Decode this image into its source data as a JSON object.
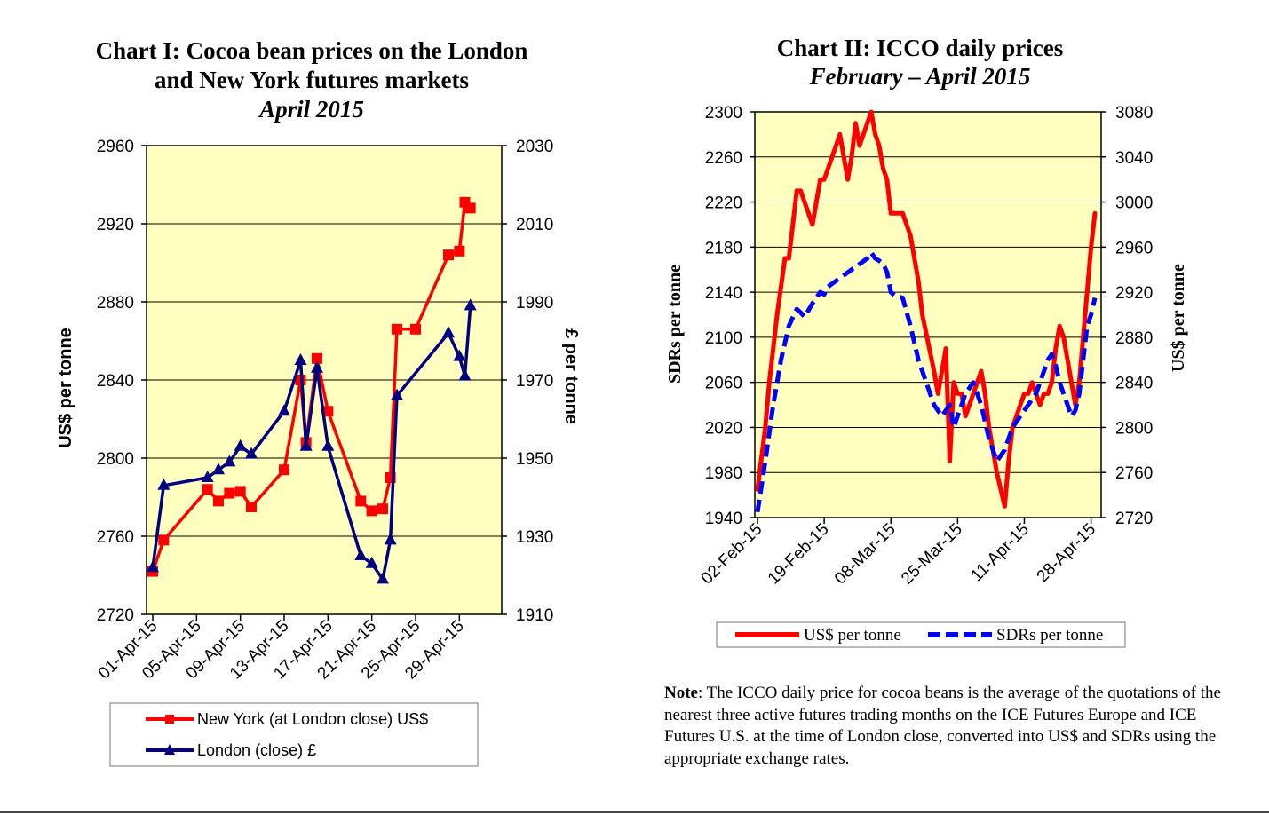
{
  "chart_data": [
    {
      "type": "line",
      "title": "Chart I: Cocoa bean prices on the London and New York futures markets",
      "title_lines": [
        "Chart I: Cocoa bean prices on the London",
        "and New York futures markets"
      ],
      "subtitle": "April 2015",
      "ylabel": "US$ per tonne",
      "y2label": "£ per tonne",
      "ylim": [
        2720,
        2960
      ],
      "y2lim": [
        1910,
        2030
      ],
      "yticks": [
        "2720",
        "2760",
        "2800",
        "2840",
        "2880",
        "2920",
        "2960"
      ],
      "y2ticks": [
        "1910",
        "1930",
        "1950",
        "1970",
        "1990",
        "2010",
        "2030"
      ],
      "xlim": [
        1,
        31
      ],
      "xticks": [
        {
          "day": 1,
          "label": "01-Apr-15"
        },
        {
          "day": 5,
          "label": "05-Apr-15"
        },
        {
          "day": 9,
          "label": "09-Apr-15"
        },
        {
          "day": 13,
          "label": "13-Apr-15"
        },
        {
          "day": 17,
          "label": "17-Apr-15"
        },
        {
          "day": 21,
          "label": "21-Apr-15"
        },
        {
          "day": 25,
          "label": "25-Apr-15"
        },
        {
          "day": 29,
          "label": "29-Apr-15"
        }
      ],
      "grid": true,
      "legend_position": "bottom",
      "series": [
        {
          "name": "New York (at London close) US$",
          "axis": "left",
          "color": "#ff0000",
          "marker": "square",
          "x": [
            1,
            2,
            6,
            7,
            8,
            9,
            10,
            13,
            14.5,
            15,
            16,
            17,
            20,
            21,
            22,
            22.7,
            23.3,
            25,
            28,
            29,
            29.5,
            30
          ],
          "values": [
            2742,
            2758,
            2784,
            2778,
            2782,
            2783,
            2775,
            2794,
            2840,
            2808,
            2851,
            2824,
            2778,
            2773,
            2774,
            2790,
            2866,
            2866,
            2904,
            2906,
            2931,
            2928
          ]
        },
        {
          "name": "London (close) £",
          "axis": "right",
          "color": "#000080",
          "marker": "triangle",
          "x": [
            1,
            2,
            6,
            7,
            8,
            9,
            10,
            13,
            14.5,
            15,
            16,
            17,
            20,
            21,
            22,
            22.7,
            23.3,
            28,
            29,
            29.5,
            30
          ],
          "values": [
            1922,
            1943,
            1945,
            1947,
            1949,
            1953,
            1951,
            1962,
            1975,
            1953,
            1973,
            1953,
            1925,
            1923,
            1919,
            1929,
            1966,
            1982,
            1976,
            1971,
            1989
          ]
        }
      ]
    },
    {
      "type": "line",
      "title": "Chart II: ICCO daily prices",
      "subtitle": "February – April 2015",
      "ylabel": "SDRs per tonne",
      "y2label": "US$ per tonne",
      "ylim": [
        1940,
        2300
      ],
      "y2lim": [
        2720,
        3080
      ],
      "yticks": [
        "1940",
        "1980",
        "2020",
        "2060",
        "2100",
        "2140",
        "2180",
        "2220",
        "2260",
        "2300"
      ],
      "y2ticks": [
        "2720",
        "2760",
        "2800",
        "2840",
        "2880",
        "2920",
        "2960",
        "3000",
        "3040",
        "3080"
      ],
      "xlim": [
        0,
        86
      ],
      "xticks": [
        {
          "day": 0,
          "label": "02-Feb-15"
        },
        {
          "day": 17,
          "label": "19-Feb-15"
        },
        {
          "day": 34,
          "label": "08-Mar-15"
        },
        {
          "day": 51,
          "label": "25-Mar-15"
        },
        {
          "day": 68,
          "label": "11-Apr-15"
        },
        {
          "day": 85,
          "label": "28-Apr-15"
        }
      ],
      "grid": true,
      "legend_position": "bottom",
      "series": [
        {
          "name": "US$ per tonne",
          "axis": "right",
          "color": "#ff0000",
          "style": "solid",
          "x": [
            0,
            2,
            3,
            5,
            7,
            8,
            9,
            10,
            11,
            12,
            14,
            15,
            16,
            17,
            19,
            21,
            22,
            23,
            24,
            25,
            26,
            28,
            29,
            30,
            31,
            32,
            33,
            34,
            35,
            36,
            37,
            39,
            40,
            41,
            42,
            45,
            46,
            47,
            48,
            49,
            50,
            51,
            52,
            53,
            55,
            57,
            58,
            59,
            61,
            63,
            64,
            65,
            66,
            67,
            68,
            69,
            70,
            72,
            73,
            74,
            75,
            76,
            77,
            78,
            79,
            80,
            81,
            82,
            83,
            84,
            85,
            86
          ],
          "values": [
            2745,
            2800,
            2840,
            2900,
            2950,
            2950,
            2980,
            3010,
            3010,
            3000,
            2980,
            3000,
            3020,
            3020,
            3040,
            3060,
            3040,
            3020,
            3040,
            3070,
            3050,
            3070,
            3080,
            3060,
            3050,
            3030,
            3020,
            2990,
            2990,
            2990,
            2990,
            2970,
            2950,
            2930,
            2900,
            2850,
            2830,
            2850,
            2870,
            2770,
            2840,
            2830,
            2830,
            2810,
            2830,
            2850,
            2830,
            2800,
            2760,
            2730,
            2770,
            2800,
            2810,
            2820,
            2830,
            2830,
            2840,
            2820,
            2830,
            2830,
            2840,
            2870,
            2890,
            2880,
            2860,
            2840,
            2820,
            2840,
            2880,
            2920,
            2960,
            2990
          ]
        },
        {
          "name": "SDRs per tonne",
          "axis": "left",
          "color": "#0000ff",
          "style": "dashed",
          "x": [
            0,
            2,
            4,
            6,
            8,
            10,
            11,
            12,
            14,
            16,
            17,
            18,
            20,
            22,
            24,
            26,
            28,
            29,
            30,
            31,
            32,
            33,
            34,
            35,
            37,
            39,
            41,
            43,
            45,
            47,
            49,
            50,
            51,
            52,
            53,
            55,
            57,
            59,
            61,
            63,
            65,
            67,
            69,
            71,
            72,
            73,
            74,
            75,
            76,
            77,
            78,
            79,
            80,
            81,
            82,
            83,
            84,
            85,
            86
          ],
          "values": [
            1945,
            1990,
            2040,
            2080,
            2110,
            2125,
            2122,
            2118,
            2130,
            2140,
            2138,
            2145,
            2150,
            2155,
            2160,
            2165,
            2170,
            2175,
            2170,
            2168,
            2165,
            2158,
            2140,
            2137,
            2135,
            2110,
            2080,
            2060,
            2040,
            2030,
            2040,
            2020,
            2030,
            2040,
            2050,
            2060,
            2040,
            2010,
            1990,
            2000,
            2020,
            2030,
            2040,
            2050,
            2060,
            2070,
            2080,
            2085,
            2075,
            2060,
            2050,
            2040,
            2030,
            2035,
            2050,
            2080,
            2110,
            2120,
            2135
          ]
        }
      ]
    }
  ],
  "note": {
    "label": "Note",
    "text": ": The ICCO daily price for cocoa beans is the average of the quotations of the nearest three active futures trading months on the ICE Futures Europe and ICE Futures U.S. at the time of London close, converted into US$ and SDRs using the appropriate exchange rates."
  }
}
